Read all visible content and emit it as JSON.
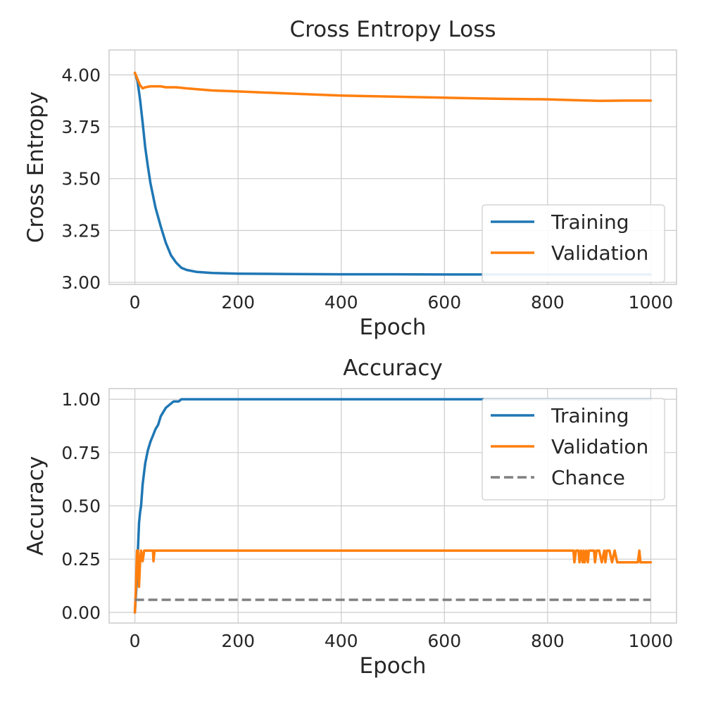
{
  "colors": {
    "training": "#1f77b4",
    "validation": "#ff7f0e",
    "chance": "#808080",
    "grid": "#cccccc",
    "axes_bg": "#ffffff",
    "text": "#262626"
  },
  "chart_data": [
    {
      "type": "line",
      "title": "Cross Entropy Loss",
      "xlabel": "Epoch",
      "ylabel": "Cross Entropy",
      "xlim": [
        -50,
        1050
      ],
      "ylim": [
        2.99,
        4.12
      ],
      "xticks": [
        0,
        200,
        400,
        600,
        800,
        1000
      ],
      "xtick_labels": [
        "0",
        "200",
        "400",
        "600",
        "800",
        "1000"
      ],
      "yticks": [
        3.0,
        3.25,
        3.5,
        3.75,
        4.0
      ],
      "ytick_labels": [
        "3.00",
        "3.25",
        "3.50",
        "3.75",
        "4.00"
      ],
      "grid": true,
      "legend": "lower right",
      "series": [
        {
          "name": "Training",
          "x": [
            0,
            5,
            10,
            15,
            20,
            25,
            30,
            40,
            50,
            60,
            70,
            80,
            90,
            100,
            120,
            150,
            200,
            300,
            400,
            500,
            600,
            700,
            800,
            900,
            1000
          ],
          "y": [
            4.01,
            3.97,
            3.88,
            3.77,
            3.65,
            3.56,
            3.48,
            3.36,
            3.27,
            3.19,
            3.13,
            3.095,
            3.07,
            3.06,
            3.05,
            3.045,
            3.042,
            3.04,
            3.039,
            3.039,
            3.038,
            3.038,
            3.038,
            3.038,
            3.038
          ]
        },
        {
          "name": "Validation",
          "x": [
            0,
            5,
            10,
            15,
            20,
            30,
            40,
            50,
            60,
            80,
            100,
            150,
            200,
            300,
            400,
            500,
            600,
            700,
            800,
            850,
            900,
            950,
            1000
          ],
          "y": [
            4.01,
            3.98,
            3.95,
            3.935,
            3.94,
            3.945,
            3.945,
            3.945,
            3.94,
            3.94,
            3.935,
            3.925,
            3.92,
            3.91,
            3.9,
            3.895,
            3.89,
            3.885,
            3.882,
            3.878,
            3.875,
            3.876,
            3.876
          ]
        }
      ]
    },
    {
      "type": "line",
      "title": "Accuracy",
      "xlabel": "Epoch",
      "ylabel": "Accuracy",
      "xlim": [
        -50,
        1050
      ],
      "ylim": [
        -0.05,
        1.05
      ],
      "xticks": [
        0,
        200,
        400,
        600,
        800,
        1000
      ],
      "xtick_labels": [
        "0",
        "200",
        "400",
        "600",
        "800",
        "1000"
      ],
      "yticks": [
        0.0,
        0.25,
        0.5,
        0.75,
        1.0
      ],
      "ytick_labels": [
        "0.00",
        "0.25",
        "0.50",
        "0.75",
        "1.00"
      ],
      "grid": true,
      "legend": "upper right",
      "series": [
        {
          "name": "Training",
          "x": [
            0,
            3,
            6,
            8,
            10,
            12,
            15,
            18,
            20,
            25,
            30,
            35,
            40,
            45,
            50,
            55,
            60,
            65,
            70,
            75,
            80,
            85,
            90,
            95,
            100,
            200,
            400,
            600,
            800,
            1000
          ],
          "y": [
            0.0,
            0.12,
            0.3,
            0.42,
            0.47,
            0.5,
            0.6,
            0.66,
            0.7,
            0.76,
            0.8,
            0.83,
            0.86,
            0.88,
            0.92,
            0.94,
            0.96,
            0.97,
            0.98,
            0.99,
            0.99,
            0.99,
            1.0,
            1.0,
            1.0,
            1.0,
            1.0,
            1.0,
            1.0,
            1.0
          ]
        },
        {
          "name": "Validation",
          "x": [
            0,
            2,
            4,
            5,
            6,
            8,
            10,
            12,
            15,
            18,
            20,
            25,
            30,
            35,
            36,
            38,
            40,
            100,
            200,
            400,
            600,
            800,
            850,
            852,
            855,
            860,
            862,
            865,
            868,
            870,
            872,
            875,
            878,
            880,
            890,
            892,
            895,
            900,
            905,
            910,
            912,
            915,
            920,
            925,
            930,
            935,
            940,
            950,
            960,
            970,
            975,
            978,
            980,
            985,
            990,
            1000
          ],
          "y": [
            0.0,
            0.12,
            0.29,
            0.24,
            0.29,
            0.12,
            0.24,
            0.29,
            0.24,
            0.29,
            0.29,
            0.29,
            0.29,
            0.29,
            0.24,
            0.29,
            0.29,
            0.29,
            0.29,
            0.29,
            0.29,
            0.29,
            0.29,
            0.235,
            0.29,
            0.29,
            0.235,
            0.29,
            0.235,
            0.29,
            0.235,
            0.29,
            0.235,
            0.29,
            0.29,
            0.235,
            0.29,
            0.29,
            0.235,
            0.29,
            0.235,
            0.29,
            0.29,
            0.235,
            0.29,
            0.235,
            0.235,
            0.235,
            0.235,
            0.235,
            0.235,
            0.29,
            0.235,
            0.235,
            0.235,
            0.235
          ]
        },
        {
          "name": "Chance",
          "x": [
            0,
            1000
          ],
          "y": [
            0.059,
            0.059
          ],
          "style": "dashed"
        }
      ]
    }
  ]
}
